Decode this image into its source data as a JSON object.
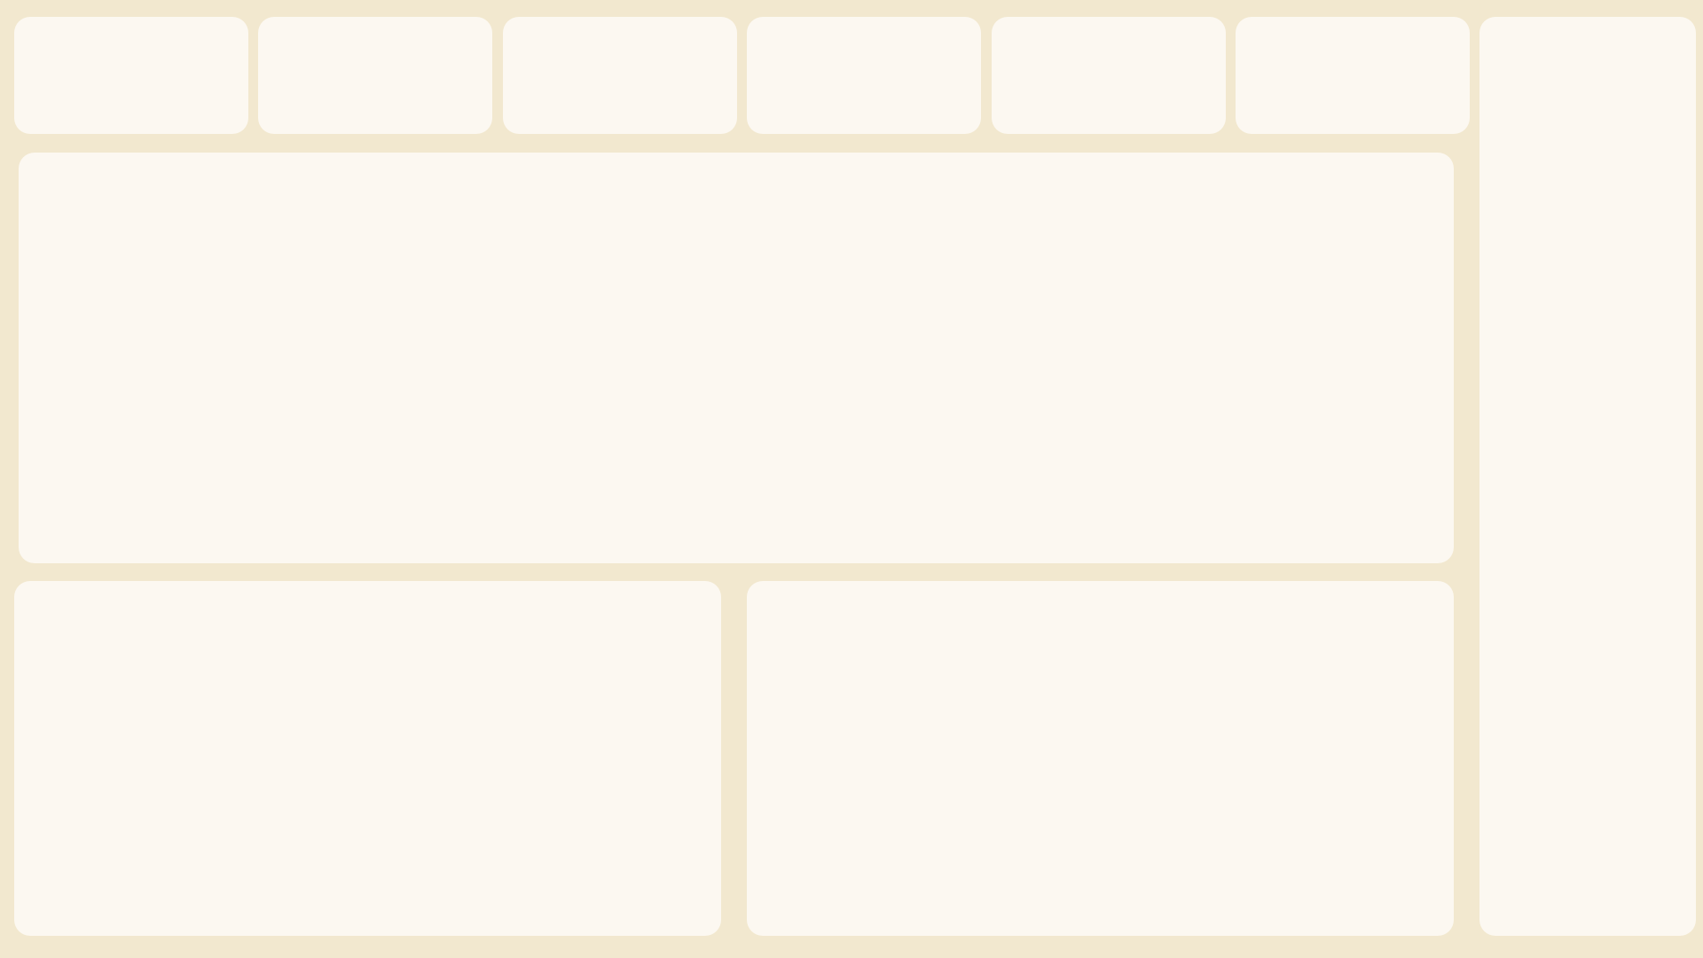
{
  "theme": {
    "background": "#f2e8cf",
    "card": "#fcf8f1"
  },
  "kpi_cards": [
    {
      "label": ""
    },
    {
      "label": ""
    },
    {
      "label": ""
    },
    {
      "label": ""
    },
    {
      "label": ""
    },
    {
      "label": ""
    }
  ],
  "main_panel": {
    "title": ""
  },
  "bottom_left_panel": {
    "title": ""
  },
  "bottom_right_panel": {
    "title": ""
  },
  "side_panel": {
    "title": ""
  }
}
